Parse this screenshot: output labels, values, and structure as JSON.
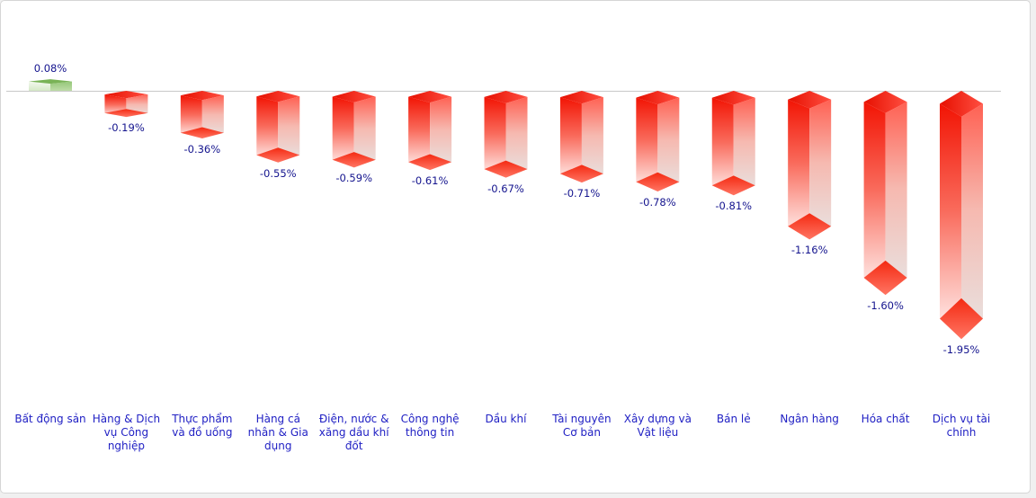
{
  "chart": {
    "background": "#ffffff",
    "border_color": "#d6d6d6",
    "axis_line_color": "#c9c9c9",
    "value_label_color": "#14148e",
    "category_label_color": "#2121c4"
  },
  "chart_data": {
    "type": "bar",
    "style": "3d-perspective-columns",
    "title": "",
    "xlabel": "",
    "ylabel": "",
    "grid": false,
    "legend": false,
    "baseline": 0,
    "ylim": [
      -2.2,
      0.4
    ],
    "categories": [
      "Bất động sản",
      "Hàng & Dịch vụ Công nghiệp",
      "Thực phẩm và đồ uống",
      "Hàng cá nhân & Gia dụng",
      "Điện, nước & xăng dầu khí đốt",
      "Công nghệ thông tin",
      "Dầu khí",
      "Tài nguyên Cơ bản",
      "Xây dựng và Vật liệu",
      "Bán lẻ",
      "Ngân hàng",
      "Hóa chất",
      "Dịch vụ tài chính"
    ],
    "values": [
      0.08,
      -0.19,
      -0.36,
      -0.55,
      -0.59,
      -0.61,
      -0.67,
      -0.71,
      -0.78,
      -0.81,
      -1.16,
      -1.6,
      -1.95
    ],
    "value_labels": [
      "0.08%",
      "-0.19%",
      "-0.36%",
      "-0.55%",
      "-0.59%",
      "-0.61%",
      "-0.67%",
      "-0.71%",
      "-0.78%",
      "-0.81%",
      "-1.16%",
      "-1.60%",
      "-1.95%"
    ],
    "positive_color": "#8fc26d",
    "negative_color": "#f21404"
  }
}
